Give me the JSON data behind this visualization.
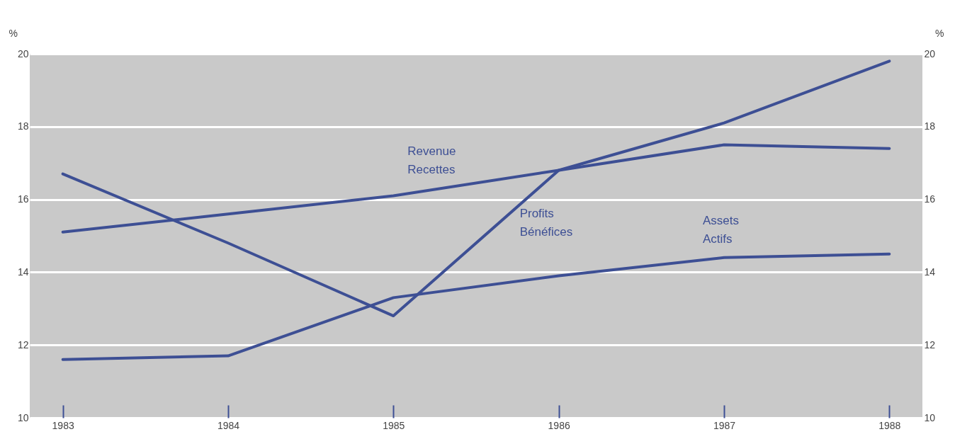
{
  "chart_data": {
    "type": "line",
    "ylabel": "%",
    "y2label": "%",
    "x": [
      1983,
      1984,
      1985,
      1986,
      1987,
      1988
    ],
    "series": [
      {
        "name": "Revenue\nRecettes",
        "color": "#3d4f94",
        "values": [
          15.1,
          15.6,
          16.1,
          16.8,
          17.5,
          17.4
        ]
      },
      {
        "name": "Profits\nBénéfices",
        "color": "#3d4f94",
        "values": [
          16.7,
          14.8,
          12.8,
          16.8,
          18.1,
          19.8
        ]
      },
      {
        "name": "Assets\nActifs",
        "color": "#3d4f94",
        "values": [
          11.6,
          11.7,
          13.3,
          13.9,
          14.4,
          14.5
        ]
      }
    ],
    "xlim": [
      1982.8,
      1988.2
    ],
    "xticks": [
      1983,
      1984,
      1985,
      1986,
      1987,
      1988
    ],
    "ylim": [
      10,
      20
    ],
    "yticks": [
      10,
      12,
      14,
      16,
      18,
      20
    ],
    "y2lim": [
      10,
      20
    ],
    "y2ticks": [
      10,
      12,
      14,
      16,
      18,
      20
    ],
    "grid": "y",
    "legend": false,
    "marker": "none",
    "line_style": "solid"
  }
}
